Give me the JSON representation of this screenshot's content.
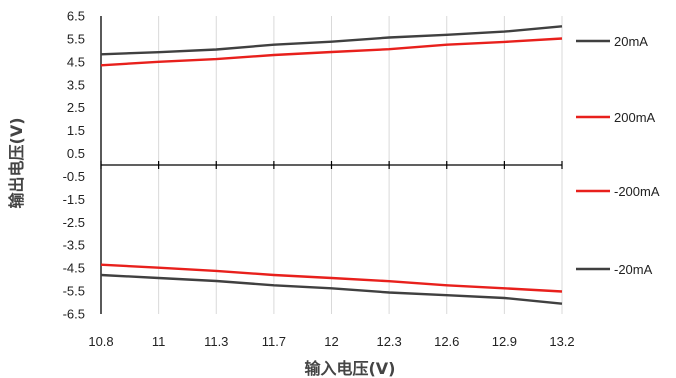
{
  "chart_data": {
    "type": "line",
    "xlabel": "输入电压(V)",
    "ylabel": "输出电压(V)",
    "x_categories": [
      "10.8",
      "11",
      "11.3",
      "11.7",
      "12",
      "12.3",
      "12.6",
      "12.9",
      "13.2"
    ],
    "y_ticks": [
      "6.5",
      "5.5",
      "4.5",
      "3.5",
      "2.5",
      "1.5",
      "0.5",
      "-0.5",
      "-1.5",
      "-2.5",
      "-3.5",
      "-4.5",
      "-5.5",
      "-6.5"
    ],
    "ylim": [
      -6.5,
      6.5
    ],
    "grid": "vertical",
    "legend_position": "right",
    "series": [
      {
        "name": "20mA",
        "color": "#404040",
        "values": [
          4.83,
          4.92,
          5.04,
          5.25,
          5.38,
          5.56,
          5.68,
          5.82,
          6.05
        ]
      },
      {
        "name": "200mA",
        "color": "#e8201c",
        "values": [
          4.35,
          4.5,
          4.62,
          4.8,
          4.93,
          5.05,
          5.25,
          5.37,
          5.52
        ]
      },
      {
        "name": "-200mA",
        "color": "#e8201c",
        "values": [
          -4.35,
          -4.48,
          -4.62,
          -4.8,
          -4.93,
          -5.07,
          -5.25,
          -5.38,
          -5.52
        ]
      },
      {
        "name": "-20mA",
        "color": "#404040",
        "values": [
          -4.8,
          -4.93,
          -5.06,
          -5.25,
          -5.38,
          -5.56,
          -5.68,
          -5.8,
          -6.05
        ]
      }
    ]
  }
}
